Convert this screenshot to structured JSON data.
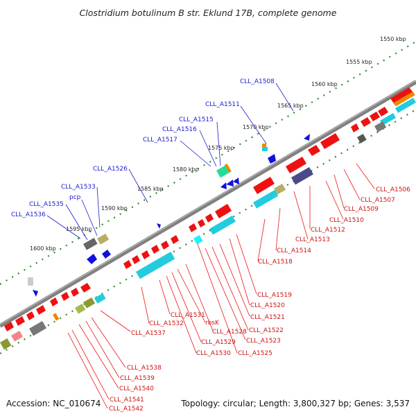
{
  "title": "Clostridium botulinum B str. Eklund 17B, complete genome",
  "footer": {
    "accession": "Accession: NC_010674",
    "topology": "Topology: circular; Length: 3,800,327 bp; Genes: 3,537"
  },
  "ticks": [
    "1550 kbp",
    "1555 kbp",
    "1560 kbp",
    "1565 kbp",
    "1570 kbp",
    "1575 kbp",
    "1580 kbp",
    "1585 kbp",
    "1590 kbp",
    "1595 kbp",
    "1600 kbp"
  ],
  "labels_top": [
    "CLL_A1508",
    "CLL_A1511",
    "CLL_A1515",
    "CLL_A1516",
    "CLL_A1517",
    "CLL_A1526",
    "CLL_A1533",
    "pcp",
    "CLL_A1535",
    "CLL_A1536"
  ],
  "labels_bottom": [
    "CLL_A1506",
    "CLL_A1507",
    "CLL_A1509",
    "CLL_A1510",
    "CLL_A1512",
    "CLL_A1513",
    "CLL_A1514",
    "CLL_A1518",
    "CLL_A1519",
    "CLL_A1520",
    "CLL_A1521",
    "CLL_A1522",
    "CLL_A1523",
    "CLL_A1525",
    "CLL_A1528",
    "rbsK",
    "CLL_A1529",
    "CLL_A1530",
    "CLL_A1531",
    "CLL_A1532",
    "CLL_A1537",
    "CLL_A1538",
    "CLL_A1539",
    "CLL_A1540",
    "CLL_A1541",
    "CLL_A1542"
  ],
  "colors": {
    "backbone": "#808080",
    "forward_gene": "#ee1111",
    "reverse_gene": "#1111dd",
    "cyan_feature": "#22ccdd",
    "olive_feature": "#8a9a30",
    "navy_feature": "#4a4a88",
    "orange_feature": "#ee8800",
    "gray_feature": "#777777",
    "tick_dots": "#2a8a2a",
    "label_top": "#1a1acc",
    "label_bottom": "#cc1111"
  }
}
